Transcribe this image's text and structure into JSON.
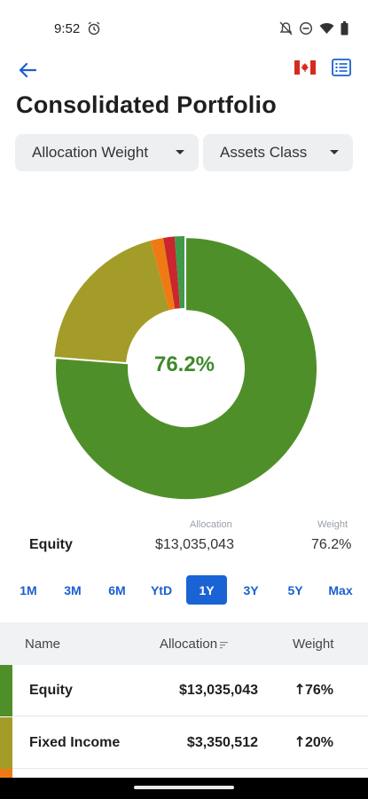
{
  "status_bar": {
    "time": "9:52",
    "icons": [
      "alarm-icon",
      "notifications-off-icon",
      "do-not-disturb-icon",
      "wifi-icon",
      "battery-icon"
    ]
  },
  "appbar": {
    "back_icon": "arrow-back-icon",
    "flag_icon": "canada-flag-icon",
    "list_icon": "list-view-icon"
  },
  "page_title": "Consolidated Portfolio",
  "filters": {
    "allocation": "Allocation Weight",
    "group_by": "Assets Class"
  },
  "chart_data": {
    "type": "pie",
    "center_label": "76.2%",
    "slices": [
      {
        "label": "Equity",
        "value": 76.2,
        "color": "#4f8f2a"
      },
      {
        "label": "Fixed Income",
        "value": 19.6,
        "color": "#a39c28"
      },
      {
        "label": "",
        "value": 1.6,
        "color": "#ef7a14"
      },
      {
        "label": "",
        "value": 1.4,
        "color": "#c9262d"
      },
      {
        "label": "",
        "value": 1.2,
        "color": "#3e9a4a"
      }
    ],
    "selected": "Equity"
  },
  "detail": {
    "allocation_caption": "Allocation",
    "weight_caption": "Weight",
    "name": "Equity",
    "allocation": "$13,035,043",
    "weight": "76.2%"
  },
  "ranges": {
    "items": [
      "1M",
      "3M",
      "6M",
      "YtD",
      "1Y",
      "3Y",
      "5Y",
      "Max"
    ],
    "active": "1Y"
  },
  "table": {
    "headers": {
      "name": "Name",
      "allocation": "Allocation",
      "weight": "Weight"
    },
    "rows": [
      {
        "name": "Equity",
        "allocation": "$13,035,043",
        "weight": "76%",
        "color": "#4f8f2a"
      },
      {
        "name": "Fixed Income",
        "allocation": "$3,350,512",
        "weight": "20%",
        "color": "#a39c28"
      }
    ],
    "next_row_color": "#ef7a14"
  },
  "colors": {
    "accent": "#1a63d4",
    "equity_green": "#4f8f2a"
  }
}
